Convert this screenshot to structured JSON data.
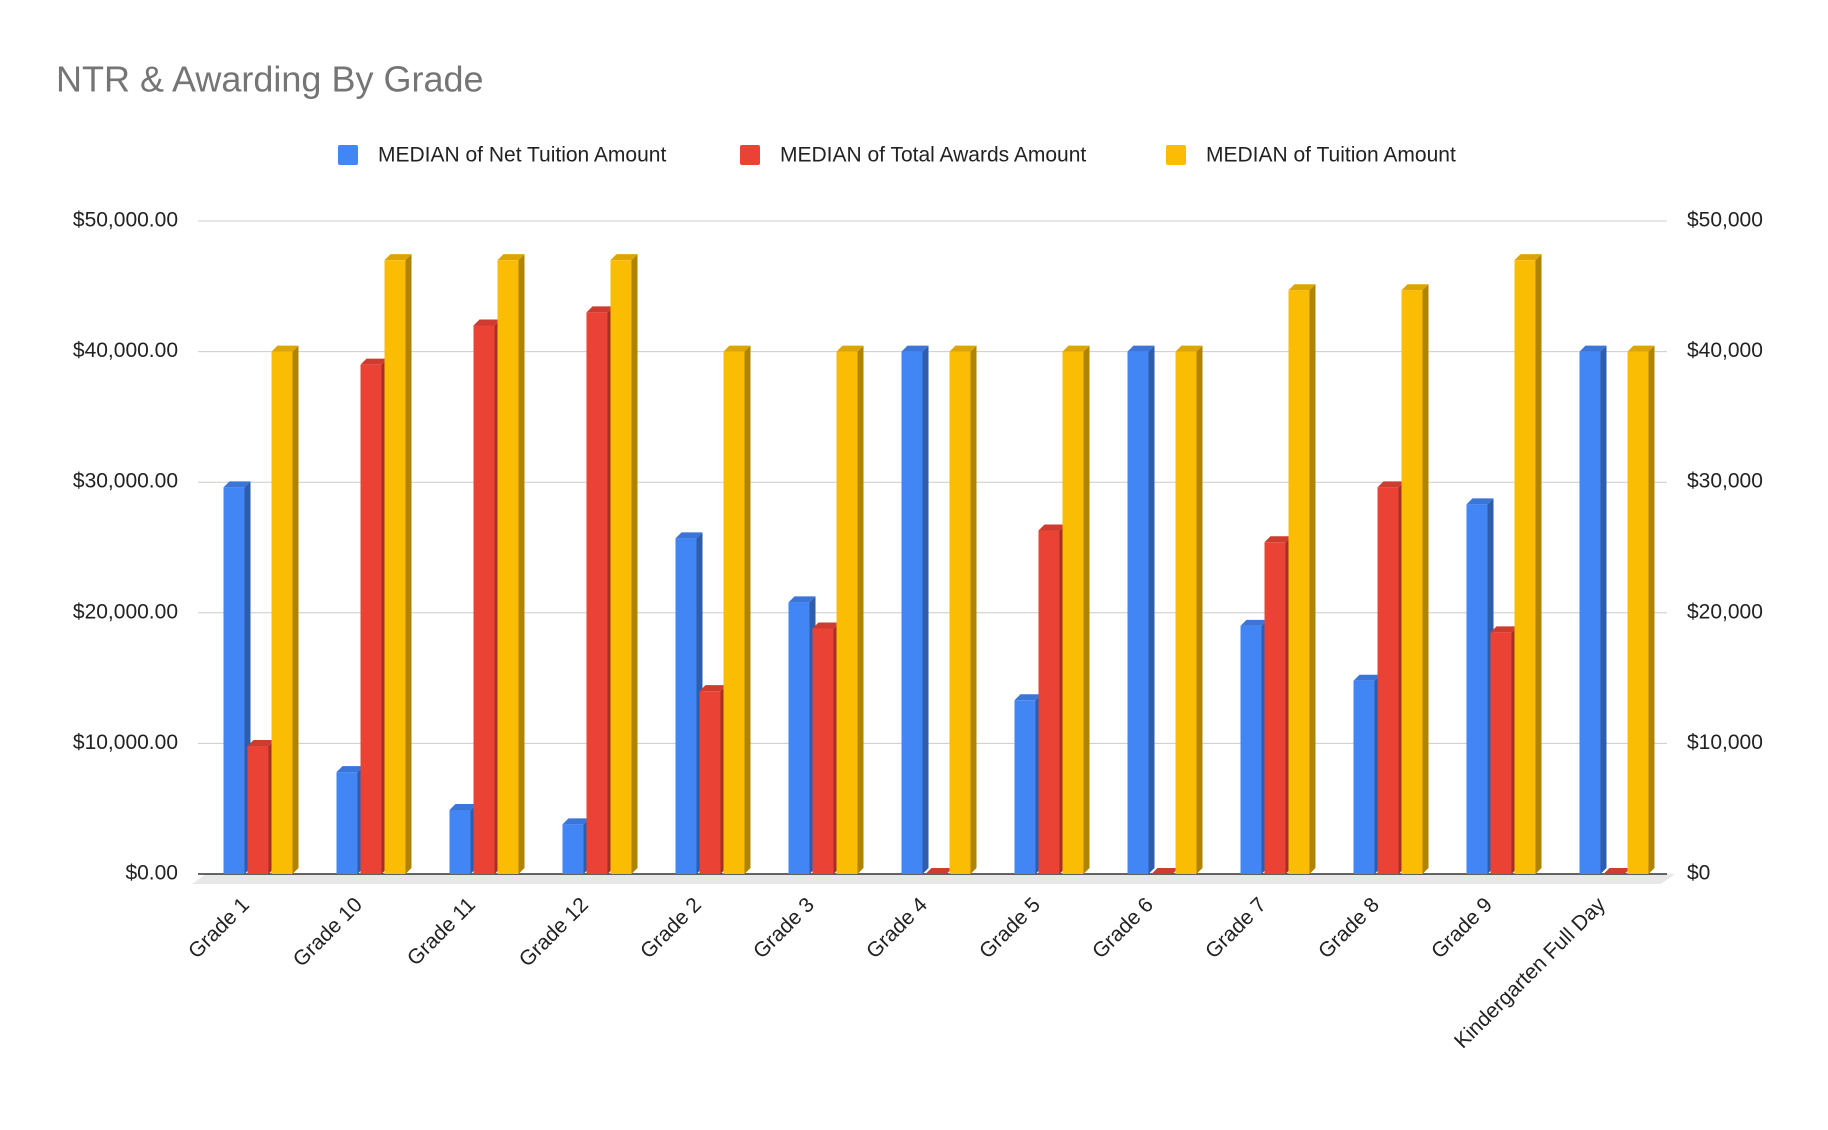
{
  "chart_data": {
    "type": "bar",
    "title": "NTR & Awarding By Grade",
    "categories": [
      "Grade 1",
      "Grade 10",
      "Grade 11",
      "Grade 12",
      "Grade 2",
      "Grade 3",
      "Grade 4",
      "Grade 5",
      "Grade 6",
      "Grade 7",
      "Grade 8",
      "Grade 9",
      "Kindergarten Full Day"
    ],
    "series": [
      {
        "name": "MEDIAN of Net Tuition Amount",
        "color": "#4285f4",
        "values": [
          29600,
          7800,
          4900,
          3800,
          25700,
          20800,
          40000,
          13300,
          40000,
          19000,
          14800,
          28300,
          40000
        ]
      },
      {
        "name": "MEDIAN of Total Awards Amount",
        "color": "#ea4335",
        "values": [
          9800,
          39000,
          42000,
          43000,
          14000,
          18800,
          0,
          26300,
          0,
          25400,
          29600,
          18500,
          0
        ]
      },
      {
        "name": "MEDIAN of Tuition Amount",
        "color": "#fbbc04",
        "values": [
          40000,
          47000,
          47000,
          47000,
          40000,
          40000,
          40000,
          40000,
          40000,
          44700,
          44700,
          47000,
          40000
        ]
      }
    ],
    "ylim": [
      0,
      50000
    ],
    "yticks": [
      {
        "value": 0,
        "label": "$0.00"
      },
      {
        "value": 10000,
        "label": "$10,000.00"
      },
      {
        "value": 20000,
        "label": "$20,000.00"
      },
      {
        "value": 30000,
        "label": "$30,000.00"
      },
      {
        "value": 40000,
        "label": "$40,000.00"
      },
      {
        "value": 50000,
        "label": "$50,000.00"
      }
    ],
    "y2lim": [
      0,
      50000
    ],
    "y2ticks": [
      {
        "value": 0,
        "label": "$0"
      },
      {
        "value": 10000,
        "label": "$10,000"
      },
      {
        "value": 20000,
        "label": "$20,000"
      },
      {
        "value": 30000,
        "label": "$30,000"
      },
      {
        "value": 40000,
        "label": "$40,000"
      },
      {
        "value": 50000,
        "label": "$50,000"
      }
    ],
    "grid": true,
    "legend": "top"
  }
}
